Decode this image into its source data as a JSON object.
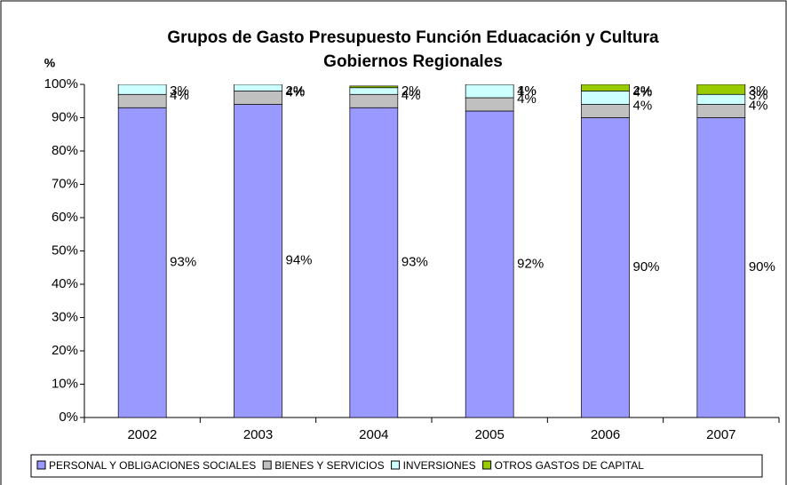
{
  "chart_data": {
    "type": "stacked_bar",
    "title": [
      "Grupos de Gasto Presupuesto Función Eduacación y Cultura",
      "Gobiernos Regionales"
    ],
    "y_label": "%",
    "categories": [
      "2002",
      "2003",
      "2004",
      "2005",
      "2006",
      "2007"
    ],
    "series": [
      {
        "name": "PERSONAL Y OBLIGACIONES SOCIALES",
        "color": "#9999ff",
        "values": [
          93,
          94,
          93,
          92,
          90,
          90
        ],
        "value_labels": [
          "93%",
          "94%",
          "93%",
          "92%",
          "90%",
          "90%"
        ]
      },
      {
        "name": "BIENES Y SERVICIOS",
        "color": "#c0c0c0",
        "values": [
          4,
          4,
          4,
          4,
          4,
          4
        ],
        "value_labels": [
          "4%",
          "4%",
          "4%",
          "4%",
          "4%",
          "4%"
        ]
      },
      {
        "name": "INVERSIONES",
        "color": "#ccffff",
        "values": [
          3,
          2,
          2,
          4,
          4,
          3
        ],
        "value_labels": [
          "3%",
          "2%",
          "2%",
          "4%",
          "4%",
          "3%"
        ]
      },
      {
        "name": "OTROS GASTOS DE CAPITAL",
        "color": "#99cc00",
        "values": [
          0,
          0,
          0.5,
          1,
          2,
          3
        ],
        "value_labels": [
          null,
          null,
          null,
          "1%",
          "2%",
          "3%"
        ]
      }
    ],
    "ylim": [
      0,
      100
    ],
    "yticks": [
      {
        "value": 0,
        "label": "0%"
      },
      {
        "value": 10,
        "label": "10%"
      },
      {
        "value": 20,
        "label": "20%"
      },
      {
        "value": 30,
        "label": "30%"
      },
      {
        "value": 40,
        "label": "40%"
      },
      {
        "value": 50,
        "label": "50%"
      },
      {
        "value": 60,
        "label": "60%"
      },
      {
        "value": 70,
        "label": "70%"
      },
      {
        "value": 80,
        "label": "80%"
      },
      {
        "value": 90,
        "label": "90%"
      },
      {
        "value": 100,
        "label": "100%"
      }
    ],
    "legend": "bottom"
  }
}
